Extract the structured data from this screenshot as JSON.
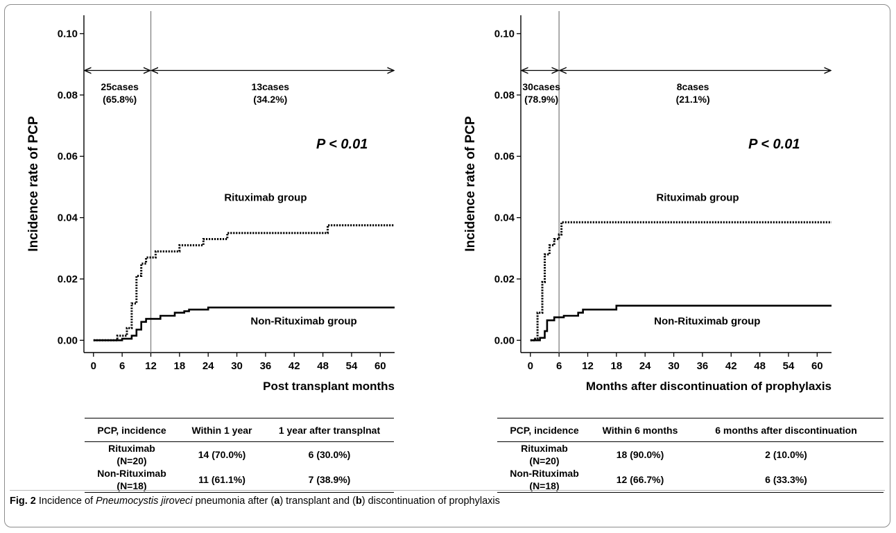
{
  "chart_data": [
    {
      "type": "line",
      "panel": "a",
      "xlabel": "Post transplant months",
      "ylabel": "Incidence  rate of PCP",
      "xlim": [
        -2,
        63
      ],
      "ylim": [
        -0.004,
        0.106
      ],
      "x_ticks": [
        0,
        6,
        12,
        18,
        24,
        30,
        36,
        42,
        48,
        54,
        60
      ],
      "y_ticks": [
        0.0,
        0.02,
        0.04,
        0.06,
        0.08,
        0.1
      ],
      "y_tick_labels": [
        "0.00",
        "0.02",
        "0.04",
        "0.06",
        "0.08",
        "0.10"
      ],
      "divider_x": 12,
      "series": [
        {
          "name": "Rituximab group",
          "style": "dotted",
          "points": [
            [
              0,
              0
            ],
            [
              5,
              0
            ],
            [
              5,
              0.0015
            ],
            [
              7,
              0.0015
            ],
            [
              7,
              0.004
            ],
            [
              8,
              0.004
            ],
            [
              8,
              0.012
            ],
            [
              9,
              0.012
            ],
            [
              9,
              0.021
            ],
            [
              10,
              0.021
            ],
            [
              10,
              0.025
            ],
            [
              11,
              0.025
            ],
            [
              11,
              0.027
            ],
            [
              13,
              0.027
            ],
            [
              13,
              0.029
            ],
            [
              18,
              0.029
            ],
            [
              18,
              0.031
            ],
            [
              23,
              0.031
            ],
            [
              23,
              0.033
            ],
            [
              28,
              0.033
            ],
            [
              28,
              0.035
            ],
            [
              49,
              0.035
            ],
            [
              49,
              0.0375
            ],
            [
              63,
              0.0375
            ]
          ]
        },
        {
          "name": "Non-Rituximab group",
          "style": "solid",
          "points": [
            [
              0,
              0
            ],
            [
              6,
              0
            ],
            [
              6,
              0.0005
            ],
            [
              8,
              0.0005
            ],
            [
              8,
              0.0015
            ],
            [
              9,
              0.0015
            ],
            [
              9,
              0.0035
            ],
            [
              10,
              0.0035
            ],
            [
              10,
              0.006
            ],
            [
              11,
              0.006
            ],
            [
              11,
              0.007
            ],
            [
              14,
              0.007
            ],
            [
              14,
              0.008
            ],
            [
              17,
              0.008
            ],
            [
              17,
              0.009
            ],
            [
              19,
              0.009
            ],
            [
              19,
              0.0095
            ],
            [
              20,
              0.0095
            ],
            [
              20,
              0.01
            ],
            [
              24,
              0.01
            ],
            [
              24,
              0.0107
            ],
            [
              63,
              0.0107
            ]
          ]
        }
      ],
      "annotations": {
        "left_cases": "25cases",
        "left_pct": "(65.8%)",
        "right_cases": "13cases",
        "right_pct": "(34.2%)",
        "p_value": "P < 0.01",
        "arrow_y": 0.088,
        "cases_y": 0.0815,
        "pct_y": 0.0775,
        "left_label_x": 5.5,
        "right_label_x": 37,
        "p_label": {
          "x": 52,
          "y": 0.0625
        },
        "ritux_label": {
          "x": 36,
          "y": 0.0455
        },
        "nonritux_label": {
          "x": 44,
          "y": 0.0052
        }
      }
    },
    {
      "type": "line",
      "panel": "b",
      "xlabel": "Months after discontinuation of prophylaxis",
      "ylabel": "Incidence rate of PCP",
      "xlim": [
        -2,
        63
      ],
      "ylim": [
        -0.004,
        0.106
      ],
      "x_ticks": [
        0,
        6,
        12,
        18,
        24,
        30,
        36,
        42,
        48,
        54,
        60
      ],
      "y_ticks": [
        0.0,
        0.02,
        0.04,
        0.06,
        0.08,
        0.1
      ],
      "y_tick_labels": [
        "0.00",
        "0.02",
        "0.04",
        "0.06",
        "0.08",
        "0.10"
      ],
      "divider_x": 6,
      "series": [
        {
          "name": "Rituximab group",
          "style": "dotted",
          "points": [
            [
              0,
              0
            ],
            [
              1,
              0
            ],
            [
              1,
              0.0005
            ],
            [
              1.5,
              0.0005
            ],
            [
              1.5,
              0.009
            ],
            [
              2.5,
              0.009
            ],
            [
              2.5,
              0.019
            ],
            [
              3,
              0.019
            ],
            [
              3,
              0.028
            ],
            [
              4,
              0.028
            ],
            [
              4,
              0.031
            ],
            [
              5,
              0.031
            ],
            [
              5,
              0.033
            ],
            [
              6,
              0.033
            ],
            [
              6,
              0.0345
            ],
            [
              6.5,
              0.0345
            ],
            [
              6.5,
              0.0385
            ],
            [
              63,
              0.0385
            ]
          ]
        },
        {
          "name": "Non-Rituximab group",
          "style": "solid",
          "points": [
            [
              0,
              0
            ],
            [
              2,
              0
            ],
            [
              2,
              0.0008
            ],
            [
              3,
              0.0008
            ],
            [
              3,
              0.003
            ],
            [
              3.5,
              0.003
            ],
            [
              3.5,
              0.0065
            ],
            [
              5,
              0.0065
            ],
            [
              5,
              0.0075
            ],
            [
              7,
              0.0075
            ],
            [
              7,
              0.008
            ],
            [
              10,
              0.008
            ],
            [
              10,
              0.009
            ],
            [
              11,
              0.009
            ],
            [
              11,
              0.01
            ],
            [
              18,
              0.01
            ],
            [
              18,
              0.0113
            ],
            [
              63,
              0.0113
            ]
          ]
        }
      ],
      "annotations": {
        "left_cases": "30cases",
        "left_pct": "(78.9%)",
        "right_cases": "8cases",
        "right_pct": "(21.1%)",
        "p_value": "P < 0.01",
        "arrow_y": 0.088,
        "cases_y": 0.0815,
        "pct_y": 0.0775,
        "left_label_x": 2.3,
        "right_label_x": 34,
        "p_label": {
          "x": 51,
          "y": 0.0625
        },
        "ritux_label": {
          "x": 35,
          "y": 0.0455
        },
        "nonritux_label": {
          "x": 37,
          "y": 0.0052
        }
      }
    }
  ],
  "tables": [
    {
      "headers": [
        "PCP, incidence",
        "Within 1 year",
        "1 year after transplnat"
      ],
      "rows": [
        {
          "label_line1": "Rituximab",
          "label_line2": "(N=20)",
          "col1": "14 (70.0%)",
          "col2": "6 (30.0%)"
        },
        {
          "label_line1": "Non-Rituximab",
          "label_line2": "(N=18)",
          "col1": "11 (61.1%)",
          "col2": "7 (38.9%)"
        }
      ]
    },
    {
      "headers": [
        "PCP, incidence",
        "Within 6 months",
        "6 months after discontinuation"
      ],
      "rows": [
        {
          "label_line1": "Rituximab",
          "label_line2": "(N=20)",
          "col1": "18 (90.0%)",
          "col2": "2 (10.0%)"
        },
        {
          "label_line1": "Non-Rituximab",
          "label_line2": "(N=18)",
          "col1": "12 (66.7%)",
          "col2": "6 (33.3%)"
        }
      ]
    }
  ],
  "caption": {
    "fig_label": "Fig. 2",
    "text_1": " Incidence of ",
    "italic_term": "Pneumocystis jiroveci",
    "text_2": " pneumonia after (",
    "panel_a": "a",
    "text_3": ") transplant and (",
    "panel_b": "b",
    "text_4": ") discontinuation of prophylaxis"
  }
}
